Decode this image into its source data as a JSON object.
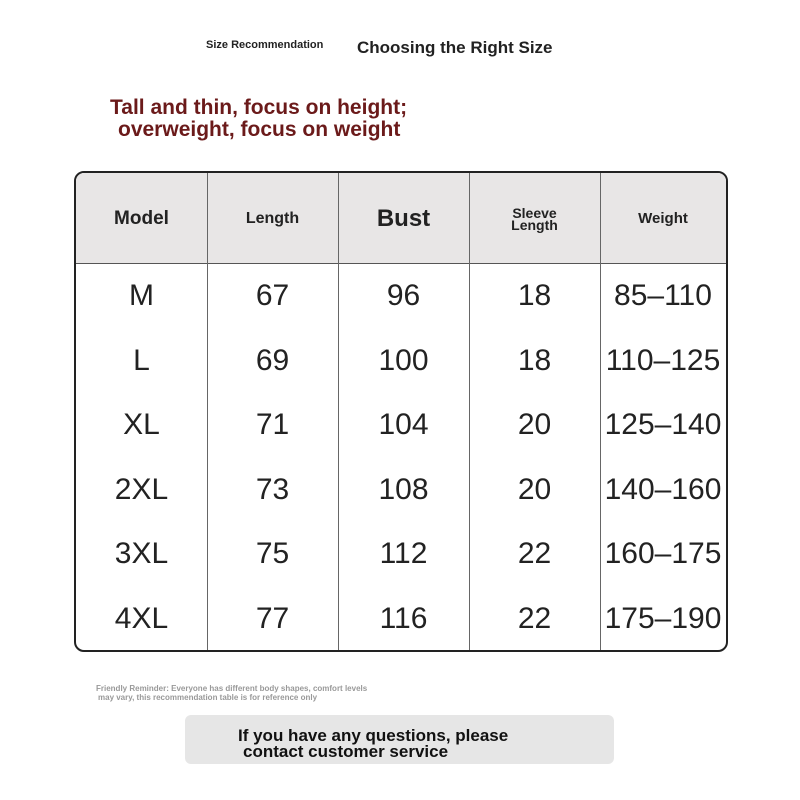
{
  "header": {
    "label": "Size Recommendation",
    "title": "Choosing the Right Size"
  },
  "advice": [
    "Tall and thin, focus on height;",
    "overweight, focus on weight"
  ],
  "table": {
    "headers": [
      "Model",
      "Length",
      "Bust",
      "Sleeve Length",
      "Weight"
    ],
    "rows": [
      [
        "M",
        "67",
        "96",
        "18",
        "85–110"
      ],
      [
        "L",
        "69",
        "100",
        "18",
        "110–125"
      ],
      [
        "XL",
        "71",
        "104",
        "20",
        "125–140"
      ],
      [
        "2XL",
        "73",
        "108",
        "20",
        "140–160"
      ],
      [
        "3XL",
        "75",
        "112",
        "22",
        "160–175"
      ],
      [
        "4XL",
        "77",
        "116",
        "22",
        "175–190"
      ]
    ]
  },
  "reminder": [
    "Friendly Reminder: Everyone has different body shapes, comfort levels",
    "may vary, this recommendation table is for reference only"
  ],
  "contact": [
    "If you have any questions, please",
    "contact customer service"
  ]
}
